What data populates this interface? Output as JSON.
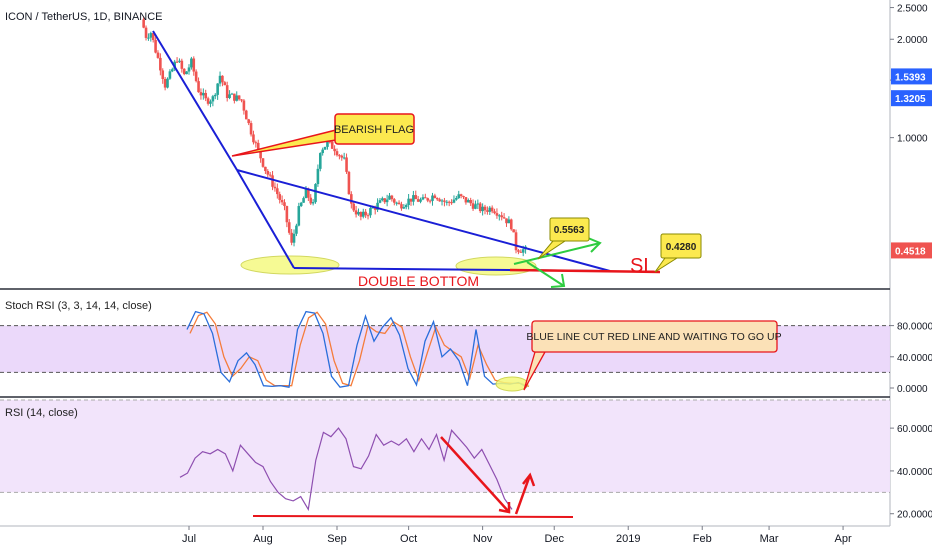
{
  "header": {
    "title": "ICON / TetherUS, 1D, BINANCE"
  },
  "panes": {
    "stoch_label": "Stoch RSI (3, 3, 14, 14, close)",
    "rsi_label": "RSI (14, close)"
  },
  "annotations": {
    "bearish_flag": "BEARISH FLAG",
    "double_bottom": "DOUBLE BOTTOM",
    "target_price": "0.5563",
    "sl_label": "SL",
    "sl_price": "0.4280",
    "stoch_note": "BLUE LINE CUT RED LINE AND WAITING TO GO UP"
  },
  "colors": {
    "up_candle": "#26a69a",
    "down_candle": "#ef5350",
    "trendline": "#1a1fd6",
    "support": "#e8151b",
    "callout_fill": "#fce94f",
    "stoch_k": "#2a6edb",
    "stoch_d": "#f57c3b",
    "rsi_line": "#8e4fb0",
    "band_fill": "#e9d5fa"
  },
  "chart_data": [
    {
      "type": "candlestick",
      "title": "ICON / TetherUS, 1D, BINANCE",
      "x_ticks": [
        "Jul",
        "Aug",
        "Sep",
        "Oct",
        "Nov",
        "Dec",
        "2019",
        "Feb",
        "Mar",
        "Apr"
      ],
      "y_ticks": [
        "2.5000",
        "2.0000",
        "1.5000",
        "1.0000"
      ],
      "y_scale": "log",
      "ylim": [
        0.38,
        2.6
      ],
      "price_badges": [
        {
          "value": "1.5393",
          "color": "#2962ff"
        },
        {
          "value": "1.3205",
          "color": "#2962ff"
        },
        {
          "value": "0.4518",
          "color": "#ef5350"
        }
      ],
      "close_path": [
        {
          "x": "2018-06-12",
          "y": 2.3
        },
        {
          "x": "2018-06-14",
          "y": 2.05
        },
        {
          "x": "2018-06-16",
          "y": 2.1
        },
        {
          "x": "2018-06-18",
          "y": 1.85
        },
        {
          "x": "2018-06-20",
          "y": 1.65
        },
        {
          "x": "2018-06-22",
          "y": 1.45
        },
        {
          "x": "2018-06-24",
          "y": 1.55
        },
        {
          "x": "2018-06-27",
          "y": 1.75
        },
        {
          "x": "2018-06-30",
          "y": 1.55
        },
        {
          "x": "2018-07-03",
          "y": 1.7
        },
        {
          "x": "2018-07-06",
          "y": 1.4
        },
        {
          "x": "2018-07-09",
          "y": 1.3
        },
        {
          "x": "2018-07-12",
          "y": 1.32
        },
        {
          "x": "2018-07-15",
          "y": 1.55
        },
        {
          "x": "2018-07-18",
          "y": 1.35
        },
        {
          "x": "2018-07-21",
          "y": 1.33
        },
        {
          "x": "2018-07-24",
          "y": 1.3
        },
        {
          "x": "2018-07-27",
          "y": 1.1
        },
        {
          "x": "2018-07-30",
          "y": 0.95
        },
        {
          "x": "2018-08-03",
          "y": 0.8
        },
        {
          "x": "2018-08-07",
          "y": 0.7
        },
        {
          "x": "2018-08-11",
          "y": 0.6
        },
        {
          "x": "2018-08-14",
          "y": 0.47
        },
        {
          "x": "2018-08-17",
          "y": 0.6
        },
        {
          "x": "2018-08-20",
          "y": 0.68
        },
        {
          "x": "2018-08-23",
          "y": 0.62
        },
        {
          "x": "2018-08-26",
          "y": 0.92
        },
        {
          "x": "2018-08-29",
          "y": 0.96
        },
        {
          "x": "2018-09-01",
          "y": 0.93
        },
        {
          "x": "2018-09-05",
          "y": 0.85
        },
        {
          "x": "2018-09-08",
          "y": 0.62
        },
        {
          "x": "2018-09-12",
          "y": 0.57
        },
        {
          "x": "2018-09-16",
          "y": 0.6
        },
        {
          "x": "2018-09-20",
          "y": 0.63
        },
        {
          "x": "2018-09-24",
          "y": 0.66
        },
        {
          "x": "2018-09-28",
          "y": 0.62
        },
        {
          "x": "2018-10-03",
          "y": 0.65
        },
        {
          "x": "2018-10-08",
          "y": 0.64
        },
        {
          "x": "2018-10-13",
          "y": 0.67
        },
        {
          "x": "2018-10-18",
          "y": 0.63
        },
        {
          "x": "2018-10-23",
          "y": 0.66
        },
        {
          "x": "2018-10-28",
          "y": 0.63
        },
        {
          "x": "2018-11-02",
          "y": 0.6
        },
        {
          "x": "2018-11-06",
          "y": 0.61
        },
        {
          "x": "2018-11-10",
          "y": 0.58
        },
        {
          "x": "2018-11-14",
          "y": 0.54
        },
        {
          "x": "2018-11-16",
          "y": 0.46
        },
        {
          "x": "2018-11-20",
          "y": 0.4518
        }
      ]
    },
    {
      "type": "line",
      "title": "Stoch RSI (3, 3, 14, 14, close)",
      "y_ticks": [
        "80.0000",
        "40.0000",
        "0.0000"
      ],
      "ylim": [
        0,
        100
      ],
      "bands": [
        20,
        80
      ],
      "series": [
        {
          "values": [
            75,
            98,
            95,
            70,
            20,
            8,
            35,
            45,
            30,
            3,
            2,
            3,
            1,
            75,
            98,
            96,
            70,
            15,
            1,
            3,
            55,
            92,
            60,
            78,
            90,
            68,
            25,
            4,
            60,
            85,
            40,
            50,
            35,
            3,
            75,
            15,
            5,
            6,
            5,
            7,
            1
          ]
        },
        {
          "values": [
            70,
            93,
            97,
            82,
            40,
            15,
            25,
            40,
            35,
            10,
            3,
            3,
            3,
            55,
            90,
            97,
            82,
            35,
            6,
            3,
            35,
            80,
            72,
            70,
            85,
            78,
            40,
            10,
            45,
            78,
            55,
            47,
            40,
            12,
            55,
            30,
            10,
            7,
            6,
            6,
            2
          ]
        }
      ]
    },
    {
      "type": "line",
      "title": "RSI (14, close)",
      "y_ticks": [
        "60.0000",
        "40.0000",
        "20.0000"
      ],
      "ylim": [
        18,
        68
      ],
      "bands": [
        30,
        70
      ],
      "series": [
        {
          "values": [
            37,
            39,
            46,
            49,
            48,
            50,
            48,
            40,
            52,
            48,
            44,
            42,
            35,
            30,
            27,
            26,
            28,
            22,
            45,
            58,
            56,
            60,
            55,
            42,
            41,
            47,
            57,
            52,
            54,
            52,
            55,
            49,
            55,
            50,
            57,
            45,
            59,
            55,
            51,
            46,
            50,
            43,
            36,
            27,
            22
          ]
        }
      ]
    }
  ]
}
